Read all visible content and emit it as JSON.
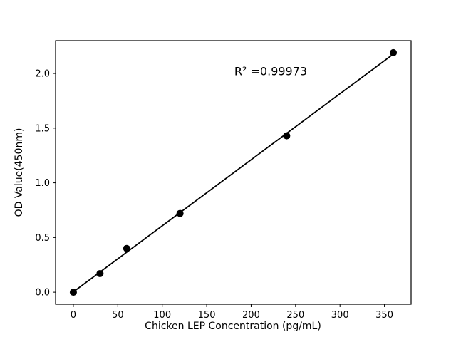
{
  "figure": {
    "background": "#ffffff",
    "foreground": "#000000"
  },
  "chart_data": {
    "type": "scatter",
    "title": "",
    "xlabel": "Chicken LEP Concentration (pg/mL)",
    "ylabel": "OD Value(450nm)",
    "annotation": "R² =0.99973",
    "r_squared": 0.99973,
    "points": [
      {
        "x": 0,
        "y": 0.0
      },
      {
        "x": 30,
        "y": 0.17
      },
      {
        "x": 60,
        "y": 0.4
      },
      {
        "x": 120,
        "y": 0.72
      },
      {
        "x": 240,
        "y": 1.43
      },
      {
        "x": 360,
        "y": 2.19
      }
    ],
    "fit_line": true,
    "x_ticks": [
      "0",
      "50",
      "100",
      "150",
      "200",
      "250",
      "300",
      "350"
    ],
    "y_ticks": [
      "0.0",
      "0.5",
      "1.0",
      "1.5",
      "2.0"
    ],
    "xlim": [
      -20,
      380
    ],
    "ylim": [
      -0.11,
      2.3
    ],
    "grid": false,
    "legend": null,
    "marker_color": "#000000",
    "line_color": "#000000"
  }
}
